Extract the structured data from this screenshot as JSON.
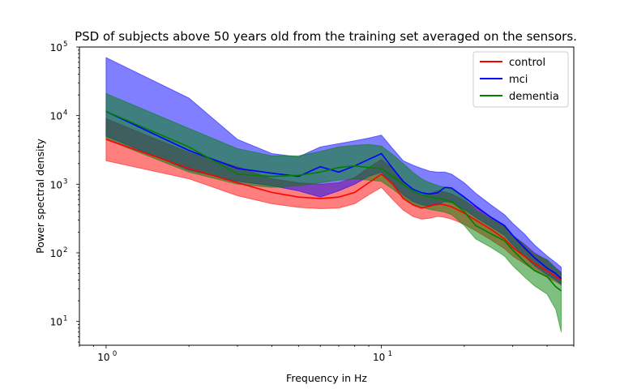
{
  "chart_data": {
    "type": "line",
    "title": "PSD of subjects above 50 years old from the training set averaged on the sensors.",
    "xlabel": "Frequency in Hz",
    "ylabel": "Power spectral density",
    "xscale": "log",
    "yscale": "log",
    "xlim": [
      0.8,
      50
    ],
    "ylim": [
      4.5,
      100000
    ],
    "grid": false,
    "legend_position": "top-right",
    "x_ticks": [
      {
        "value": 1,
        "base": "10",
        "exp": "0"
      },
      {
        "value": 10,
        "base": "10",
        "exp": "1"
      }
    ],
    "y_ticks": [
      {
        "value": 10,
        "base": "10",
        "exp": "1"
      },
      {
        "value": 100,
        "base": "10",
        "exp": "2"
      },
      {
        "value": 1000,
        "base": "10",
        "exp": "3"
      },
      {
        "value": 10000,
        "base": "10",
        "exp": "4"
      },
      {
        "value": 100000,
        "base": "10",
        "exp": "5"
      }
    ],
    "series": [
      {
        "name": "control",
        "color": "#ff0000",
        "x": [
          1,
          2,
          3,
          4,
          5,
          6,
          7,
          8,
          9,
          10,
          11,
          12,
          13,
          14,
          15,
          16,
          17,
          18,
          20,
          22,
          25,
          28,
          30,
          33,
          36,
          40,
          43,
          45
        ],
        "y": [
          4500,
          1700,
          1050,
          760,
          650,
          620,
          650,
          760,
          1050,
          1400,
          1000,
          620,
          500,
          450,
          480,
          520,
          500,
          470,
          380,
          300,
          220,
          160,
          120,
          90,
          70,
          55,
          45,
          40
        ],
        "lower": [
          2200,
          1200,
          680,
          520,
          460,
          440,
          450,
          520,
          700,
          900,
          600,
          420,
          340,
          310,
          320,
          340,
          330,
          310,
          260,
          210,
          155,
          115,
          90,
          70,
          55,
          44,
          38,
          34
        ],
        "upper": [
          9000,
          2900,
          1800,
          1200,
          1050,
          1000,
          1050,
          1250,
          1750,
          2300,
          1700,
          1050,
          800,
          700,
          740,
          800,
          770,
          720,
          580,
          460,
          330,
          240,
          180,
          135,
          100,
          78,
          60,
          52
        ]
      },
      {
        "name": "mci",
        "color": "#0000ff",
        "x": [
          1,
          2,
          3,
          4,
          5,
          6,
          7,
          8,
          9,
          10,
          11,
          12,
          13,
          14,
          15,
          16,
          17,
          18,
          20,
          22,
          25,
          28,
          30,
          33,
          36,
          40,
          43,
          45
        ],
        "y": [
          11500,
          3100,
          1700,
          1450,
          1300,
          1800,
          1500,
          1850,
          2300,
          2800,
          1700,
          1100,
          850,
          750,
          720,
          750,
          900,
          880,
          650,
          480,
          330,
          250,
          180,
          120,
          85,
          60,
          50,
          42
        ],
        "lower": [
          5000,
          1600,
          1100,
          950,
          800,
          650,
          800,
          1000,
          1300,
          1500,
          1000,
          700,
          560,
          500,
          480,
          500,
          560,
          540,
          430,
          330,
          240,
          180,
          130,
          90,
          65,
          48,
          40,
          35
        ],
        "upper": [
          70000,
          18000,
          4500,
          2800,
          2500,
          3500,
          3900,
          4300,
          4700,
          5200,
          3300,
          2200,
          1900,
          1700,
          1550,
          1500,
          1500,
          1400,
          1050,
          740,
          500,
          360,
          270,
          190,
          130,
          90,
          72,
          62
        ]
      },
      {
        "name": "dementia",
        "color": "#008000",
        "x": [
          1,
          2,
          3,
          4,
          5,
          6,
          7,
          8,
          9,
          10,
          11,
          12,
          13,
          14,
          15,
          16,
          17,
          18,
          20,
          22,
          25,
          28,
          30,
          33,
          36,
          40,
          43,
          45
        ],
        "y": [
          11500,
          3500,
          1400,
          1300,
          1350,
          1500,
          1750,
          1850,
          1750,
          1700,
          1300,
          1000,
          800,
          700,
          650,
          620,
          600,
          560,
          400,
          250,
          190,
          150,
          110,
          75,
          55,
          45,
          32,
          28
        ],
        "lower": [
          4500,
          1500,
          1000,
          900,
          950,
          1050,
          1150,
          1200,
          1150,
          1100,
          850,
          650,
          520,
          460,
          430,
          410,
          390,
          360,
          250,
          160,
          120,
          90,
          65,
          45,
          33,
          25,
          15,
          7
        ],
        "upper": [
          21000,
          6500,
          3300,
          2600,
          2600,
          3000,
          3500,
          3700,
          3800,
          3600,
          2700,
          2000,
          1500,
          1200,
          1050,
          960,
          900,
          850,
          620,
          420,
          310,
          240,
          180,
          130,
          95,
          80,
          60,
          50
        ]
      }
    ]
  }
}
